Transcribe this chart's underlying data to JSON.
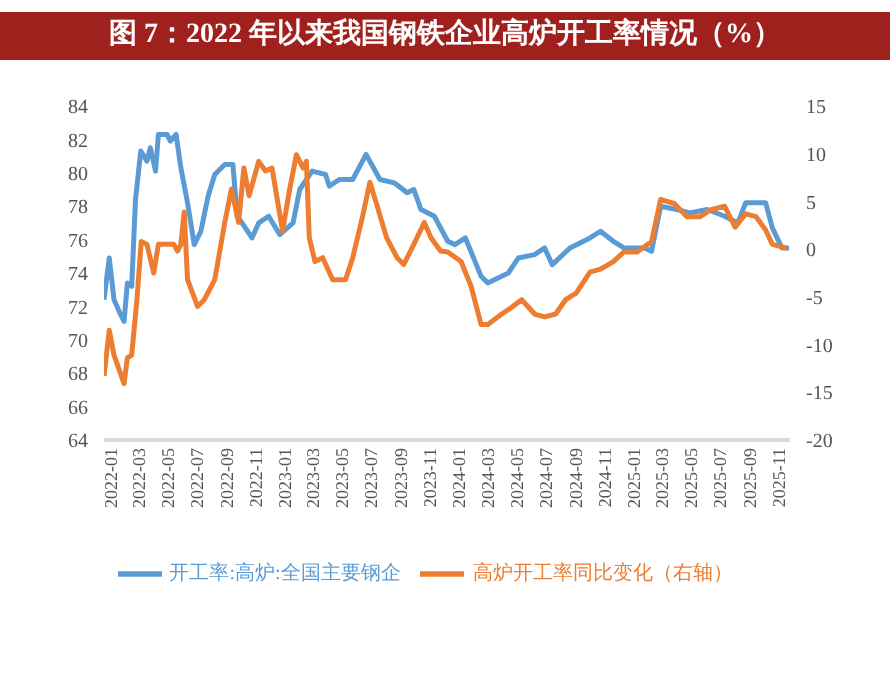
{
  "chart_data": {
    "type": "line",
    "title": "图 7：2022 年以来我国钢铁企业高炉开工率情况（%）",
    "xlim": [
      "2022-01-01",
      "2025-12-08"
    ],
    "xticks": [
      "2022-01",
      "2022-03",
      "2022-05",
      "2022-07",
      "2022-09",
      "2022-11",
      "2023-01",
      "2023-03",
      "2023-05",
      "2023-07",
      "2023-09",
      "2023-11",
      "2024-01",
      "2024-03",
      "2024-05",
      "2024-07",
      "2024-09",
      "2024-11",
      "2025-01",
      "2025-03",
      "2025-05",
      "2025-07",
      "2025-09",
      "2025-11"
    ],
    "ylim": [
      64,
      84
    ],
    "yticks": [
      64,
      66,
      68,
      70,
      72,
      74,
      76,
      78,
      80,
      82,
      84
    ],
    "y2lim": [
      -20,
      15
    ],
    "y2ticks": [
      -20,
      -15,
      -10,
      -5,
      0,
      5,
      10,
      15
    ],
    "grid": false,
    "legend": "bottom",
    "marker": "none",
    "line_style": "solid",
    "series": [
      {
        "name": "开工率:高炉:全国主要钢企",
        "color": "#5b9bd5",
        "x": [
          "2022-01-01",
          "2022-01-12",
          "2022-01-22",
          "2022-02-05",
          "2022-02-12",
          "2022-02-19",
          "2022-02-28",
          "2022-03-08",
          "2022-03-19",
          "2022-04-01",
          "2022-04-08",
          "2022-04-19",
          "2022-04-25",
          "2022-05-13",
          "2022-05-20",
          "2022-06-01",
          "2022-06-11",
          "2022-06-25",
          "2022-07-09",
          "2022-07-23",
          "2022-08-07",
          "2022-08-21",
          "2022-09-11",
          "2022-09-28",
          "2022-10-07",
          "2022-10-17",
          "2022-11-07",
          "2022-11-21",
          "2022-12-12",
          "2023-01-04",
          "2023-02-01",
          "2023-02-15",
          "2023-03-13",
          "2023-04-10",
          "2023-04-18",
          "2023-05-09",
          "2023-06-06",
          "2023-07-04",
          "2023-08-02",
          "2023-09-01",
          "2023-09-28",
          "2023-10-12",
          "2023-10-27",
          "2023-11-24",
          "2023-12-22",
          "2024-01-06",
          "2024-01-28",
          "2024-03-01",
          "2024-03-15",
          "2024-04-27",
          "2024-05-18",
          "2024-06-21",
          "2024-07-12",
          "2024-07-28",
          "2024-09-03",
          "2024-10-15",
          "2024-11-06",
          "2024-12-03",
          "2024-12-25",
          "2025-01-15",
          "2025-02-06",
          "2025-02-21",
          "2025-03-12",
          "2025-04-15",
          "2025-05-12",
          "2025-06-18",
          "2025-07-24",
          "2025-08-21",
          "2025-09-06",
          "2025-10-18",
          "2025-11-01",
          "2025-11-21",
          "2025-12-06"
        ],
        "values": [
          72.4,
          74.9,
          72.4,
          71.5,
          71.1,
          73.4,
          73.2,
          78.4,
          81.3,
          80.7,
          81.5,
          80.1,
          82.3,
          82.3,
          81.9,
          82.3,
          80.3,
          78.2,
          75.7,
          76.5,
          78.6,
          79.9,
          80.5,
          80.5,
          77.4,
          77.0,
          76.1,
          77.0,
          77.4,
          76.3,
          77.0,
          79.0,
          80.1,
          79.9,
          79.2,
          79.6,
          79.6,
          81.1,
          79.6,
          79.4,
          78.8,
          79.0,
          77.8,
          77.4,
          75.9,
          75.7,
          76.1,
          73.8,
          73.4,
          74.0,
          74.9,
          75.1,
          75.5,
          74.5,
          75.5,
          76.1,
          76.5,
          75.9,
          75.5,
          75.5,
          75.5,
          75.3,
          78.0,
          77.8,
          77.6,
          77.8,
          77.4,
          77.0,
          78.2,
          78.2,
          76.7,
          75.5,
          75.5
        ]
      },
      {
        "name": "高炉开工率同比变化（右轴）",
        "color": "#ed7d31",
        "axis": "y2",
        "x": [
          "2022-01-01",
          "2022-01-12",
          "2022-01-22",
          "2022-02-12",
          "2022-02-19",
          "2022-02-28",
          "2022-03-11",
          "2022-03-20",
          "2022-04-01",
          "2022-04-15",
          "2022-04-25",
          "2022-05-27",
          "2022-06-04",
          "2022-06-11",
          "2022-06-18",
          "2022-06-25",
          "2022-07-16",
          "2022-07-30",
          "2022-08-21",
          "2022-09-11",
          "2022-09-25",
          "2022-10-10",
          "2022-10-21",
          "2022-11-01",
          "2022-11-21",
          "2022-12-05",
          "2022-12-19",
          "2023-01-10",
          "2023-01-25",
          "2023-02-08",
          "2023-02-22",
          "2023-03-01",
          "2023-03-07",
          "2023-03-19",
          "2023-04-04",
          "2023-04-25",
          "2023-05-22",
          "2023-06-06",
          "2023-06-27",
          "2023-07-12",
          "2023-07-25",
          "2023-08-16",
          "2023-09-07",
          "2023-09-21",
          "2023-10-12",
          "2023-11-03",
          "2023-11-17",
          "2023-12-07",
          "2023-12-22",
          "2024-01-19",
          "2024-02-09",
          "2024-03-01",
          "2024-03-15",
          "2024-04-13",
          "2024-05-04",
          "2024-05-25",
          "2024-06-21",
          "2024-07-12",
          "2024-08-04",
          "2024-08-25",
          "2024-09-16",
          "2024-10-15",
          "2024-11-06",
          "2024-12-03",
          "2024-12-25",
          "2025-01-22",
          "2025-02-21",
          "2025-03-12",
          "2025-04-09",
          "2025-05-06",
          "2025-06-03",
          "2025-06-24",
          "2025-07-24",
          "2025-08-15",
          "2025-09-06",
          "2025-09-28",
          "2025-10-18",
          "2025-11-01",
          "2025-12-01"
        ],
        "values": [
          -13.3,
          -8.5,
          -11.1,
          -14.1,
          -11.4,
          -11.1,
          -5.3,
          0.8,
          0.5,
          -2.5,
          0.5,
          0.5,
          -0.2,
          0.5,
          3.9,
          -3.2,
          -6.0,
          -5.3,
          -3.2,
          2.8,
          6.3,
          2.8,
          8.5,
          5.6,
          9.2,
          8.2,
          8.5,
          1.9,
          6.3,
          9.9,
          8.5,
          9.2,
          1.2,
          -1.3,
          -0.9,
          -3.2,
          -3.2,
          -0.9,
          3.5,
          7.0,
          4.9,
          1.2,
          -0.9,
          -1.6,
          0.5,
          2.8,
          1.2,
          -0.2,
          -0.3,
          -1.3,
          -3.9,
          -7.9,
          -7.9,
          -6.8,
          -6.1,
          -5.3,
          -6.8,
          -7.1,
          -6.8,
          -5.3,
          -4.6,
          -2.4,
          -2.1,
          -1.3,
          -0.3,
          -0.3,
          0.8,
          5.2,
          4.8,
          3.4,
          3.4,
          4.1,
          4.5,
          2.3,
          3.7,
          3.4,
          2.0,
          0.5,
          0.1
        ]
      }
    ]
  }
}
